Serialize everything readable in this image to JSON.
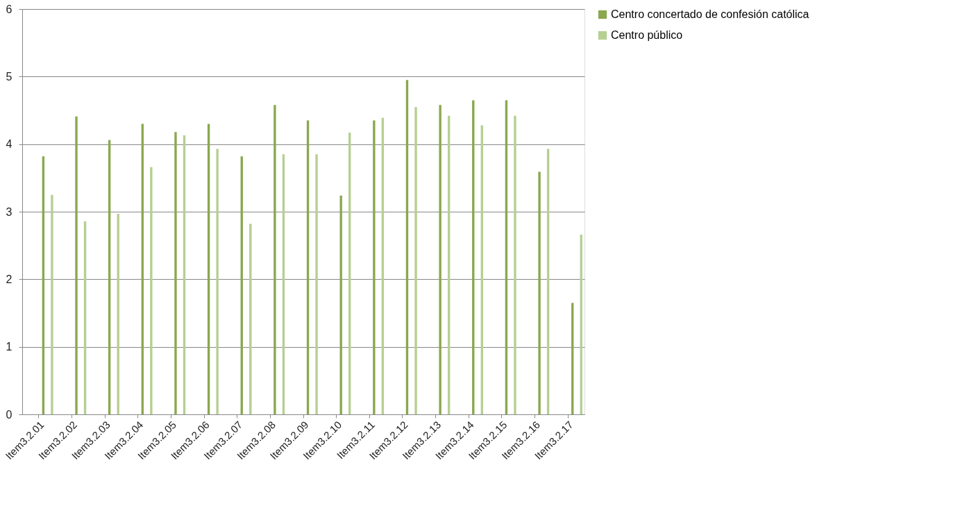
{
  "chart_data": {
    "type": "bar",
    "categories": [
      "Item3.2.01",
      "Item3.2.02",
      "Item3.2.03",
      "Item3.2.04",
      "Item3.2.05",
      "Item3.2.06",
      "Item3.2.07",
      "Item3.2.08",
      "Item3.2.09",
      "Item3.2.10",
      "Item3.2.11",
      "Item3.2.12",
      "Item3.2.13",
      "Item3.2.14",
      "Item3.2.15",
      "Item3.2.16",
      "Item3.2.17"
    ],
    "series": [
      {
        "name": "Centro concertado de confesión católica",
        "color": "#8aa84f",
        "values": [
          3.82,
          4.41,
          4.06,
          4.3,
          4.18,
          4.3,
          3.82,
          4.58,
          4.35,
          3.24,
          4.35,
          4.95,
          4.58,
          4.65,
          4.65,
          3.59,
          1.65
        ]
      },
      {
        "name": "Centro público",
        "color": "#b6cf92",
        "values": [
          3.25,
          2.86,
          2.97,
          3.66,
          4.13,
          3.93,
          2.82,
          3.85,
          3.85,
          4.17,
          4.39,
          4.55,
          4.42,
          4.28,
          4.42,
          3.93,
          2.66
        ]
      }
    ],
    "ylim": [
      0,
      6
    ],
    "yticks": [
      0,
      1,
      2,
      3,
      4,
      5,
      6
    ],
    "grid": "y",
    "legend": "right"
  }
}
